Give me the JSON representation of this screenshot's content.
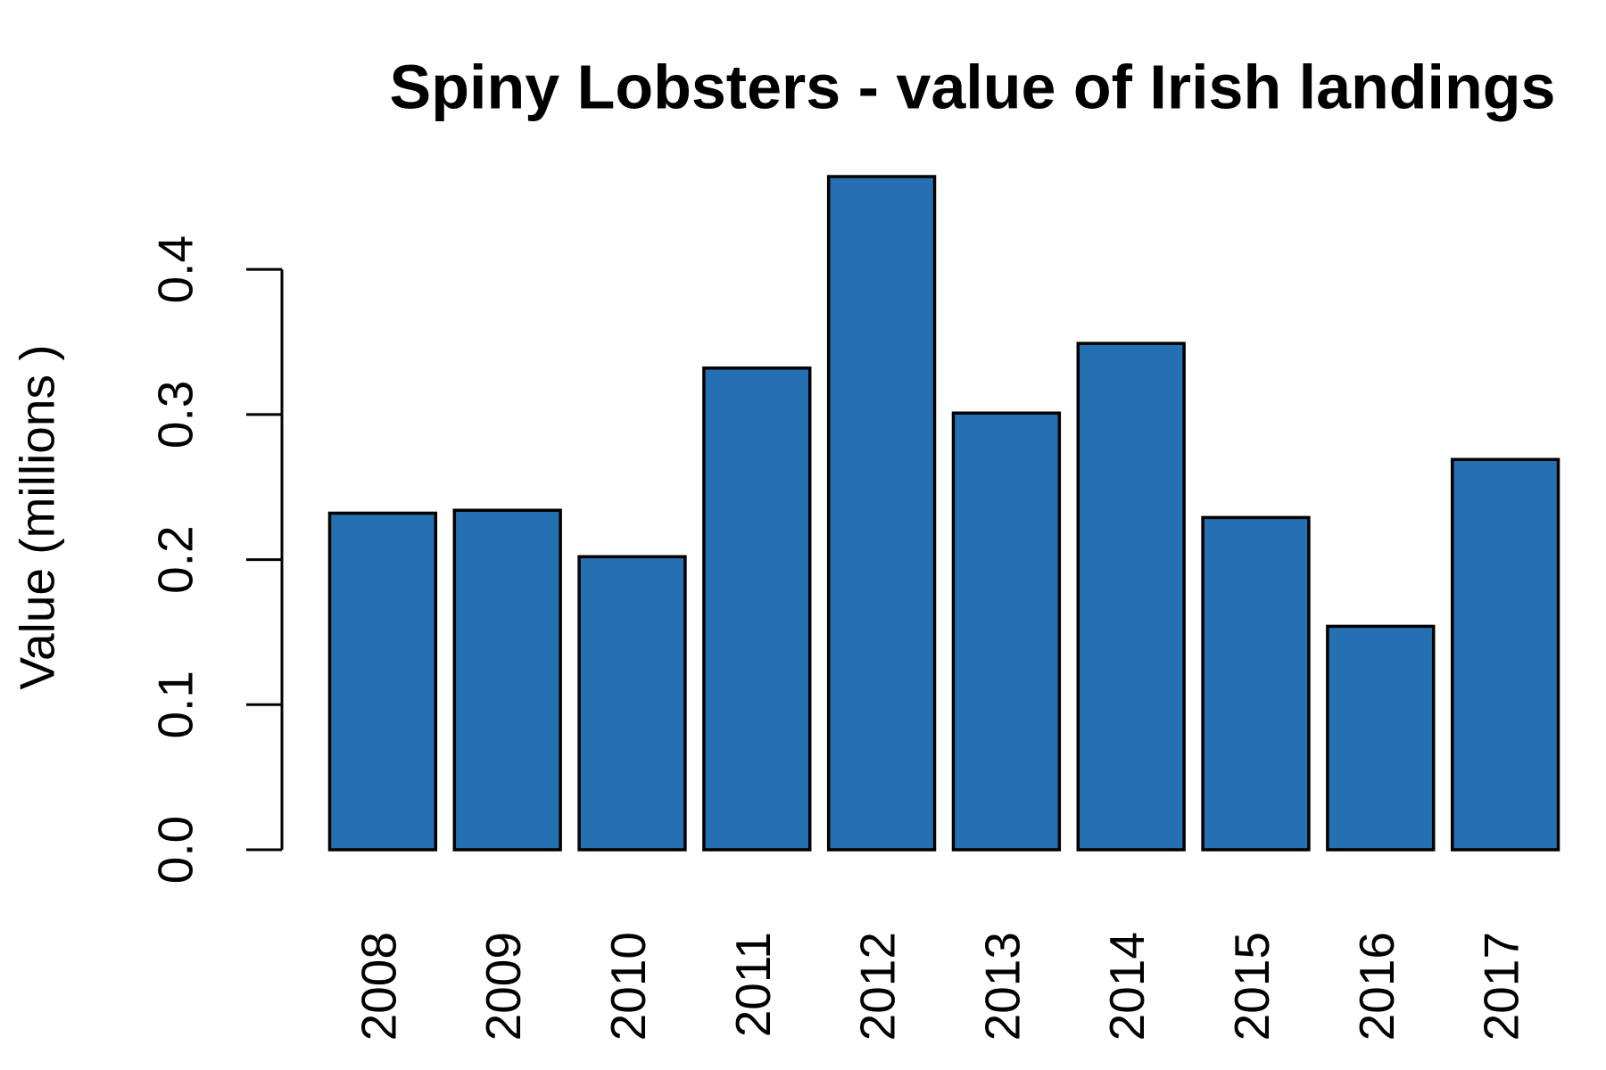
{
  "chart_data": {
    "type": "bar",
    "title": "Spiny Lobsters - value of Irish landings",
    "y_label": "Value (millions )",
    "categories": [
      "2008",
      "2009",
      "2010",
      "2011",
      "2012",
      "2013",
      "2014",
      "2015",
      "2016",
      "2017"
    ],
    "values": [
      0.232,
      0.234,
      0.202,
      0.332,
      0.464,
      0.301,
      0.349,
      0.229,
      0.154,
      0.269
    ],
    "color": "#2470b3",
    "ylim": [
      0,
      0.48
    ],
    "yticks": [
      {
        "value": 0,
        "label": "0.0"
      },
      0.1,
      0.2,
      0.3,
      0.4
    ],
    "grid": false
  }
}
